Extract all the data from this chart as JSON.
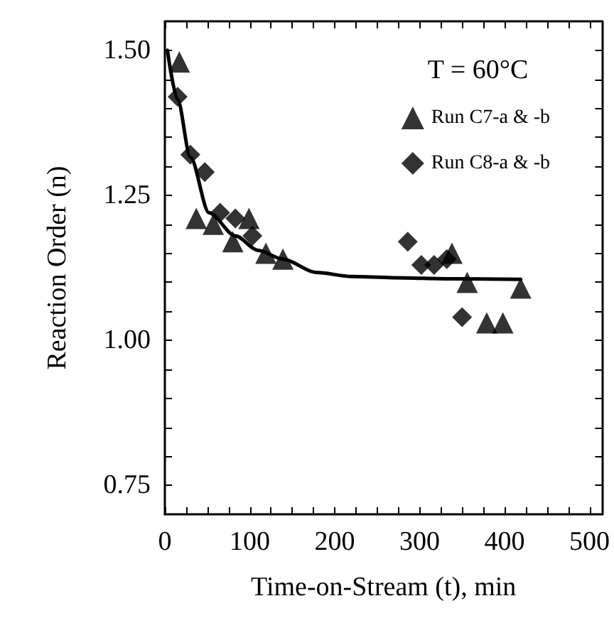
{
  "chart_data": {
    "type": "scatter",
    "xlabel": "Time-on-Stream (t), min",
    "ylabel": "Reaction Order (n)",
    "annotations": [
      "T = 60°C"
    ],
    "xlim": [
      0,
      515
    ],
    "ylim": [
      0.7,
      1.55
    ],
    "xticks": [
      0,
      {
        "value": 25,
        "label": null
      },
      100,
      {
        "value": 50,
        "label": null
      },
      {
        "value": 75,
        "label": null
      },
      {
        "value": 125,
        "label": null
      },
      {
        "value": 150,
        "label": null
      },
      {
        "value": 175,
        "label": null
      },
      200,
      {
        "value": 225,
        "label": null
      },
      {
        "value": 250,
        "label": null
      },
      {
        "value": 275,
        "label": null
      },
      300,
      {
        "value": 325,
        "label": null
      },
      {
        "value": 350,
        "label": null
      },
      {
        "value": 375,
        "label": null
      },
      400,
      {
        "value": 425,
        "label": null
      },
      {
        "value": 450,
        "label": null
      },
      {
        "value": 475,
        "label": null
      },
      500
    ],
    "yticks": [
      {
        "value": 0.75,
        "label": "0.75"
      },
      {
        "value": 0.8,
        "label": null
      },
      {
        "value": 0.85,
        "label": null
      },
      {
        "value": 0.9,
        "label": null
      },
      {
        "value": 0.95,
        "label": null
      },
      {
        "value": 1.0,
        "label": "1.00"
      },
      {
        "value": 1.05,
        "label": null
      },
      {
        "value": 1.1,
        "label": null
      },
      {
        "value": 1.15,
        "label": null
      },
      {
        "value": 1.2,
        "label": null
      },
      {
        "value": 1.25,
        "label": "1.25"
      },
      {
        "value": 1.3,
        "label": null
      },
      {
        "value": 1.35,
        "label": null
      },
      {
        "value": 1.4,
        "label": null
      },
      {
        "value": 1.45,
        "label": null
      },
      {
        "value": 1.5,
        "label": "1.50"
      }
    ],
    "grid": false,
    "legend": "top right",
    "series": [
      {
        "name": "Run C7-a & -b",
        "color": "#000000",
        "marker": "triangle",
        "x": [
          17,
          37,
          57,
          80,
          99,
          119,
          139,
          338,
          356,
          379,
          398,
          419
        ],
        "values": [
          1.48,
          1.21,
          1.2,
          1.17,
          1.21,
          1.15,
          1.14,
          1.15,
          1.1,
          1.03,
          1.03,
          1.09
        ]
      },
      {
        "name": "Run C8-a & -b",
        "color": "#000000",
        "marker": "diamond",
        "x": [
          15,
          30,
          47,
          65,
          83,
          103,
          286,
          302,
          317,
          332,
          350
        ],
        "values": [
          1.42,
          1.32,
          1.29,
          1.22,
          1.21,
          1.18,
          1.17,
          1.13,
          1.13,
          1.14,
          1.04
        ]
      },
      {
        "type": "line",
        "color": "#000000",
        "marker": "none",
        "line_style": "solid",
        "x": [
          3,
          15,
          30,
          52,
          83,
          110,
          139,
          178,
          220,
          268,
          340,
          419
        ],
        "values": [
          1.5,
          1.415,
          1.316,
          1.22,
          1.18,
          1.155,
          1.14,
          1.117,
          1.11,
          1.108,
          1.106,
          1.105
        ]
      }
    ]
  }
}
